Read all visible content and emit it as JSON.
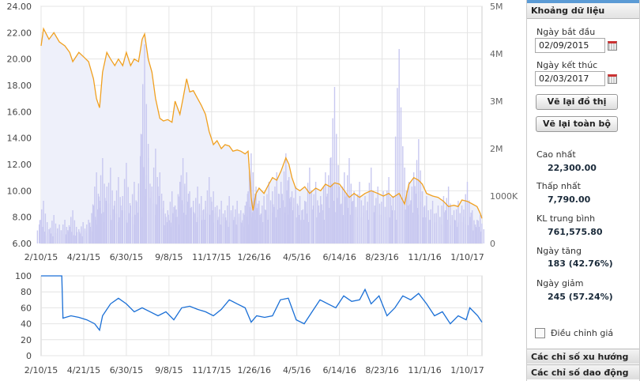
{
  "sidebar": {
    "header": "Khoảng dữ liệu",
    "start_label": "Ngày bắt đầu",
    "start_value": "02/09/2015",
    "end_label": "Ngày kết thúc",
    "end_value": "02/03/2017",
    "redraw_label": "Vẽ lại đồ thị",
    "redraw_all_label": "Vẽ lại toàn bộ",
    "stats": [
      {
        "label": "Cao nhất",
        "value": "22,300.00"
      },
      {
        "label": "Thấp nhất",
        "value": "7,790.00"
      },
      {
        "label": "KL trung bình",
        "value": "761,575.80"
      },
      {
        "label": "Ngày tăng",
        "value": "183 (42.76%)"
      },
      {
        "label": "Ngày giảm",
        "value": "245 (57.24%)"
      }
    ],
    "adjust_label": "Điều chỉnh giá",
    "adjust_checked": false,
    "trend_label": "Các chỉ số xu hướng",
    "osc_label": "Các chỉ số dao động"
  },
  "chart_data": [
    {
      "type": "line",
      "grid": true,
      "x_ticks": [
        "2/10/15",
        "4/21/15",
        "6/30/15",
        "9/8/15",
        "11/17/15",
        "1/26/16",
        "4/5/16",
        "6/14/16",
        "8/23/16",
        "11/1/16",
        "1/10/17"
      ],
      "x_tick_dates": [
        "2015-02-10",
        "2015-04-21",
        "2015-06-30",
        "2015-09-08",
        "2015-11-17",
        "2016-01-26",
        "2016-04-05",
        "2016-06-14",
        "2016-08-23",
        "2016-11-01",
        "2017-01-10"
      ],
      "xlim": [
        "2015-02-10",
        "2017-02-03"
      ],
      "ylim": [
        6,
        24
      ],
      "y_ticks": [
        "6.00",
        "8.00",
        "10.00",
        "12.00",
        "14.00",
        "16.00",
        "18.00",
        "20.00",
        "22.00",
        "24.00"
      ],
      "y2lim": [
        0,
        5000
      ],
      "y2_ticks": [
        "0",
        "1000K",
        "2M",
        "3M",
        "4M",
        "5M"
      ],
      "colors": {
        "price": "#f0a020",
        "volume": "#c8c8f0",
        "area": "#eef0fa"
      },
      "price": [
        [
          "2015-02-10",
          21.0
        ],
        [
          "2015-02-14",
          22.3
        ],
        [
          "2015-02-23",
          21.5
        ],
        [
          "2015-03-03",
          22.0
        ],
        [
          "2015-03-12",
          21.3
        ],
        [
          "2015-03-21",
          21.0
        ],
        [
          "2015-03-29",
          20.5
        ],
        [
          "2015-04-03",
          19.8
        ],
        [
          "2015-04-13",
          20.5
        ],
        [
          "2015-04-20",
          20.2
        ],
        [
          "2015-04-29",
          19.8
        ],
        [
          "2015-05-07",
          18.5
        ],
        [
          "2015-05-12",
          17.0
        ],
        [
          "2015-05-17",
          16.3
        ],
        [
          "2015-05-22",
          19.0
        ],
        [
          "2015-05-29",
          20.5
        ],
        [
          "2015-06-04",
          20.0
        ],
        [
          "2015-06-11",
          19.5
        ],
        [
          "2015-06-17",
          20.0
        ],
        [
          "2015-06-24",
          19.5
        ],
        [
          "2015-06-30",
          20.5
        ],
        [
          "2015-07-07",
          19.5
        ],
        [
          "2015-07-13",
          20.0
        ],
        [
          "2015-07-20",
          19.8
        ],
        [
          "2015-07-26",
          21.5
        ],
        [
          "2015-07-30",
          21.9
        ],
        [
          "2015-08-05",
          20.0
        ],
        [
          "2015-08-11",
          19.0
        ],
        [
          "2015-08-17",
          17.0
        ],
        [
          "2015-08-24",
          15.5
        ],
        [
          "2015-08-30",
          15.3
        ],
        [
          "2015-09-06",
          15.4
        ],
        [
          "2015-09-13",
          15.2
        ],
        [
          "2015-09-18",
          16.8
        ],
        [
          "2015-09-26",
          15.8
        ],
        [
          "2015-10-01",
          17.0
        ],
        [
          "2015-10-07",
          18.5
        ],
        [
          "2015-10-12",
          17.5
        ],
        [
          "2015-10-18",
          17.6
        ],
        [
          "2015-10-25",
          17.0
        ],
        [
          "2015-10-31",
          16.5
        ],
        [
          "2015-11-07",
          15.8
        ],
        [
          "2015-11-13",
          14.5
        ],
        [
          "2015-11-20",
          13.5
        ],
        [
          "2015-11-26",
          13.8
        ],
        [
          "2015-12-03",
          13.2
        ],
        [
          "2015-12-09",
          13.5
        ],
        [
          "2015-12-16",
          13.4
        ],
        [
          "2015-12-22",
          13.0
        ],
        [
          "2015-12-29",
          13.1
        ],
        [
          "2016-01-04",
          13.0
        ],
        [
          "2016-01-11",
          12.8
        ],
        [
          "2016-01-16",
          13.0
        ],
        [
          "2016-01-21",
          9.5
        ],
        [
          "2016-01-24",
          8.5
        ],
        [
          "2016-01-29",
          9.8
        ],
        [
          "2016-02-03",
          10.2
        ],
        [
          "2016-02-11",
          9.8
        ],
        [
          "2016-02-19",
          10.5
        ],
        [
          "2016-02-25",
          11.0
        ],
        [
          "2016-03-03",
          10.8
        ],
        [
          "2016-03-10",
          11.5
        ],
        [
          "2016-03-18",
          12.5
        ],
        [
          "2016-03-23",
          12.0
        ],
        [
          "2016-03-28",
          11.0
        ],
        [
          "2016-04-03",
          10.2
        ],
        [
          "2016-04-10",
          10.0
        ],
        [
          "2016-04-18",
          10.3
        ],
        [
          "2016-04-26",
          9.8
        ],
        [
          "2016-05-06",
          10.2
        ],
        [
          "2016-05-14",
          10.0
        ],
        [
          "2016-05-22",
          10.5
        ],
        [
          "2016-05-30",
          10.3
        ],
        [
          "2016-06-06",
          10.6
        ],
        [
          "2016-06-14",
          10.5
        ],
        [
          "2016-06-22",
          10.0
        ],
        [
          "2016-06-30",
          9.5
        ],
        [
          "2016-07-08",
          9.8
        ],
        [
          "2016-07-17",
          9.5
        ],
        [
          "2016-07-26",
          9.8
        ],
        [
          "2016-08-05",
          10.0
        ],
        [
          "2016-08-16",
          9.8
        ],
        [
          "2016-08-25",
          9.6
        ],
        [
          "2016-09-03",
          9.8
        ],
        [
          "2016-09-10",
          9.5
        ],
        [
          "2016-09-20",
          9.8
        ],
        [
          "2016-09-29",
          9.0
        ],
        [
          "2016-10-06",
          10.5
        ],
        [
          "2016-10-14",
          11.0
        ],
        [
          "2016-10-22",
          10.8
        ],
        [
          "2016-10-28",
          10.5
        ],
        [
          "2016-11-04",
          9.8
        ],
        [
          "2016-11-14",
          9.6
        ],
        [
          "2016-11-23",
          9.5
        ],
        [
          "2016-12-02",
          9.2
        ],
        [
          "2016-12-10",
          8.8
        ],
        [
          "2016-12-19",
          8.9
        ],
        [
          "2016-12-26",
          8.8
        ],
        [
          "2017-01-01",
          9.3
        ],
        [
          "2017-01-10",
          9.2
        ],
        [
          "2017-01-18",
          9.0
        ],
        [
          "2017-01-26",
          8.8
        ],
        [
          "2017-01-31",
          8.3
        ],
        [
          "2017-02-03",
          7.9
        ]
      ],
      "volume_k": [
        500,
        900,
        300,
        600,
        400,
        500,
        350,
        700,
        300,
        450,
        500,
        800,
        1500,
        900,
        1800,
        1200,
        1600,
        900,
        1400,
        1000,
        1700,
        800,
        1300,
        1100,
        2300,
        4200,
        1800,
        1200,
        2000,
        1500,
        900,
        700,
        1100,
        800,
        1300,
        1800,
        1500,
        1100,
        900,
        1200,
        1000,
        900,
        1400,
        1100,
        800,
        900,
        700,
        1000,
        800,
        900,
        700,
        800,
        1100,
        1900,
        1500,
        1200,
        900,
        1000,
        1300,
        1100,
        1500,
        1300,
        1900,
        1400,
        1100,
        1200,
        1000,
        900,
        1600,
        1300,
        1000,
        1500,
        1800,
        3300,
        1200,
        1500,
        1800,
        1100,
        1300,
        1000,
        1600,
        1200,
        1100,
        1400,
        1000,
        4100,
        1600,
        1300,
        1500,
        2200,
        1100,
        1000,
        900,
        800,
        1000,
        1200,
        700,
        900,
        800,
        1300,
        700,
        500,
        600
      ]
    },
    {
      "type": "line",
      "grid": true,
      "ylim": [
        0,
        100
      ],
      "y_ticks": [
        "0",
        "20",
        "40",
        "60",
        "80",
        "100"
      ],
      "x_ticks": [
        "2/10/15",
        "4/21/15",
        "6/30/15",
        "9/8/15",
        "11/17/15",
        "1/26/16",
        "4/5/16",
        "6/14/16",
        "8/23/16",
        "11/1/16",
        "1/10/17"
      ],
      "colors": {
        "line": "#1a6fd6"
      },
      "values": [
        [
          "2015-02-10",
          100
        ],
        [
          "2015-03-16",
          100
        ],
        [
          "2015-03-18",
          47
        ],
        [
          "2015-03-31",
          50
        ],
        [
          "2015-04-13",
          48
        ],
        [
          "2015-04-26",
          45
        ],
        [
          "2015-05-09",
          40
        ],
        [
          "2015-05-17",
          32
        ],
        [
          "2015-05-22",
          50
        ],
        [
          "2015-06-04",
          65
        ],
        [
          "2015-06-17",
          72
        ],
        [
          "2015-06-30",
          65
        ],
        [
          "2015-07-13",
          55
        ],
        [
          "2015-07-26",
          60
        ],
        [
          "2015-08-08",
          55
        ],
        [
          "2015-08-21",
          50
        ],
        [
          "2015-09-03",
          55
        ],
        [
          "2015-09-16",
          45
        ],
        [
          "2015-09-29",
          60
        ],
        [
          "2015-10-12",
          62
        ],
        [
          "2015-10-25",
          58
        ],
        [
          "2015-11-07",
          55
        ],
        [
          "2015-11-20",
          50
        ],
        [
          "2015-12-03",
          58
        ],
        [
          "2015-12-16",
          70
        ],
        [
          "2015-12-29",
          65
        ],
        [
          "2016-01-11",
          60
        ],
        [
          "2016-01-21",
          42
        ],
        [
          "2016-01-30",
          50
        ],
        [
          "2016-02-12",
          48
        ],
        [
          "2016-02-25",
          50
        ],
        [
          "2016-03-09",
          70
        ],
        [
          "2016-03-22",
          72
        ],
        [
          "2016-04-04",
          45
        ],
        [
          "2016-04-17",
          40
        ],
        [
          "2016-04-30",
          55
        ],
        [
          "2016-05-13",
          70
        ],
        [
          "2016-05-26",
          65
        ],
        [
          "2016-06-08",
          60
        ],
        [
          "2016-06-21",
          75
        ],
        [
          "2016-07-04",
          68
        ],
        [
          "2016-07-17",
          70
        ],
        [
          "2016-07-26",
          83
        ],
        [
          "2016-08-05",
          65
        ],
        [
          "2016-08-18",
          75
        ],
        [
          "2016-08-31",
          50
        ],
        [
          "2016-09-13",
          60
        ],
        [
          "2016-09-26",
          75
        ],
        [
          "2016-10-09",
          70
        ],
        [
          "2016-10-22",
          78
        ],
        [
          "2016-11-04",
          65
        ],
        [
          "2016-11-17",
          50
        ],
        [
          "2016-11-30",
          55
        ],
        [
          "2016-12-13",
          40
        ],
        [
          "2016-12-26",
          50
        ],
        [
          "2017-01-08",
          45
        ],
        [
          "2017-01-14",
          60
        ],
        [
          "2017-01-27",
          50
        ],
        [
          "2017-02-03",
          42
        ]
      ]
    }
  ]
}
